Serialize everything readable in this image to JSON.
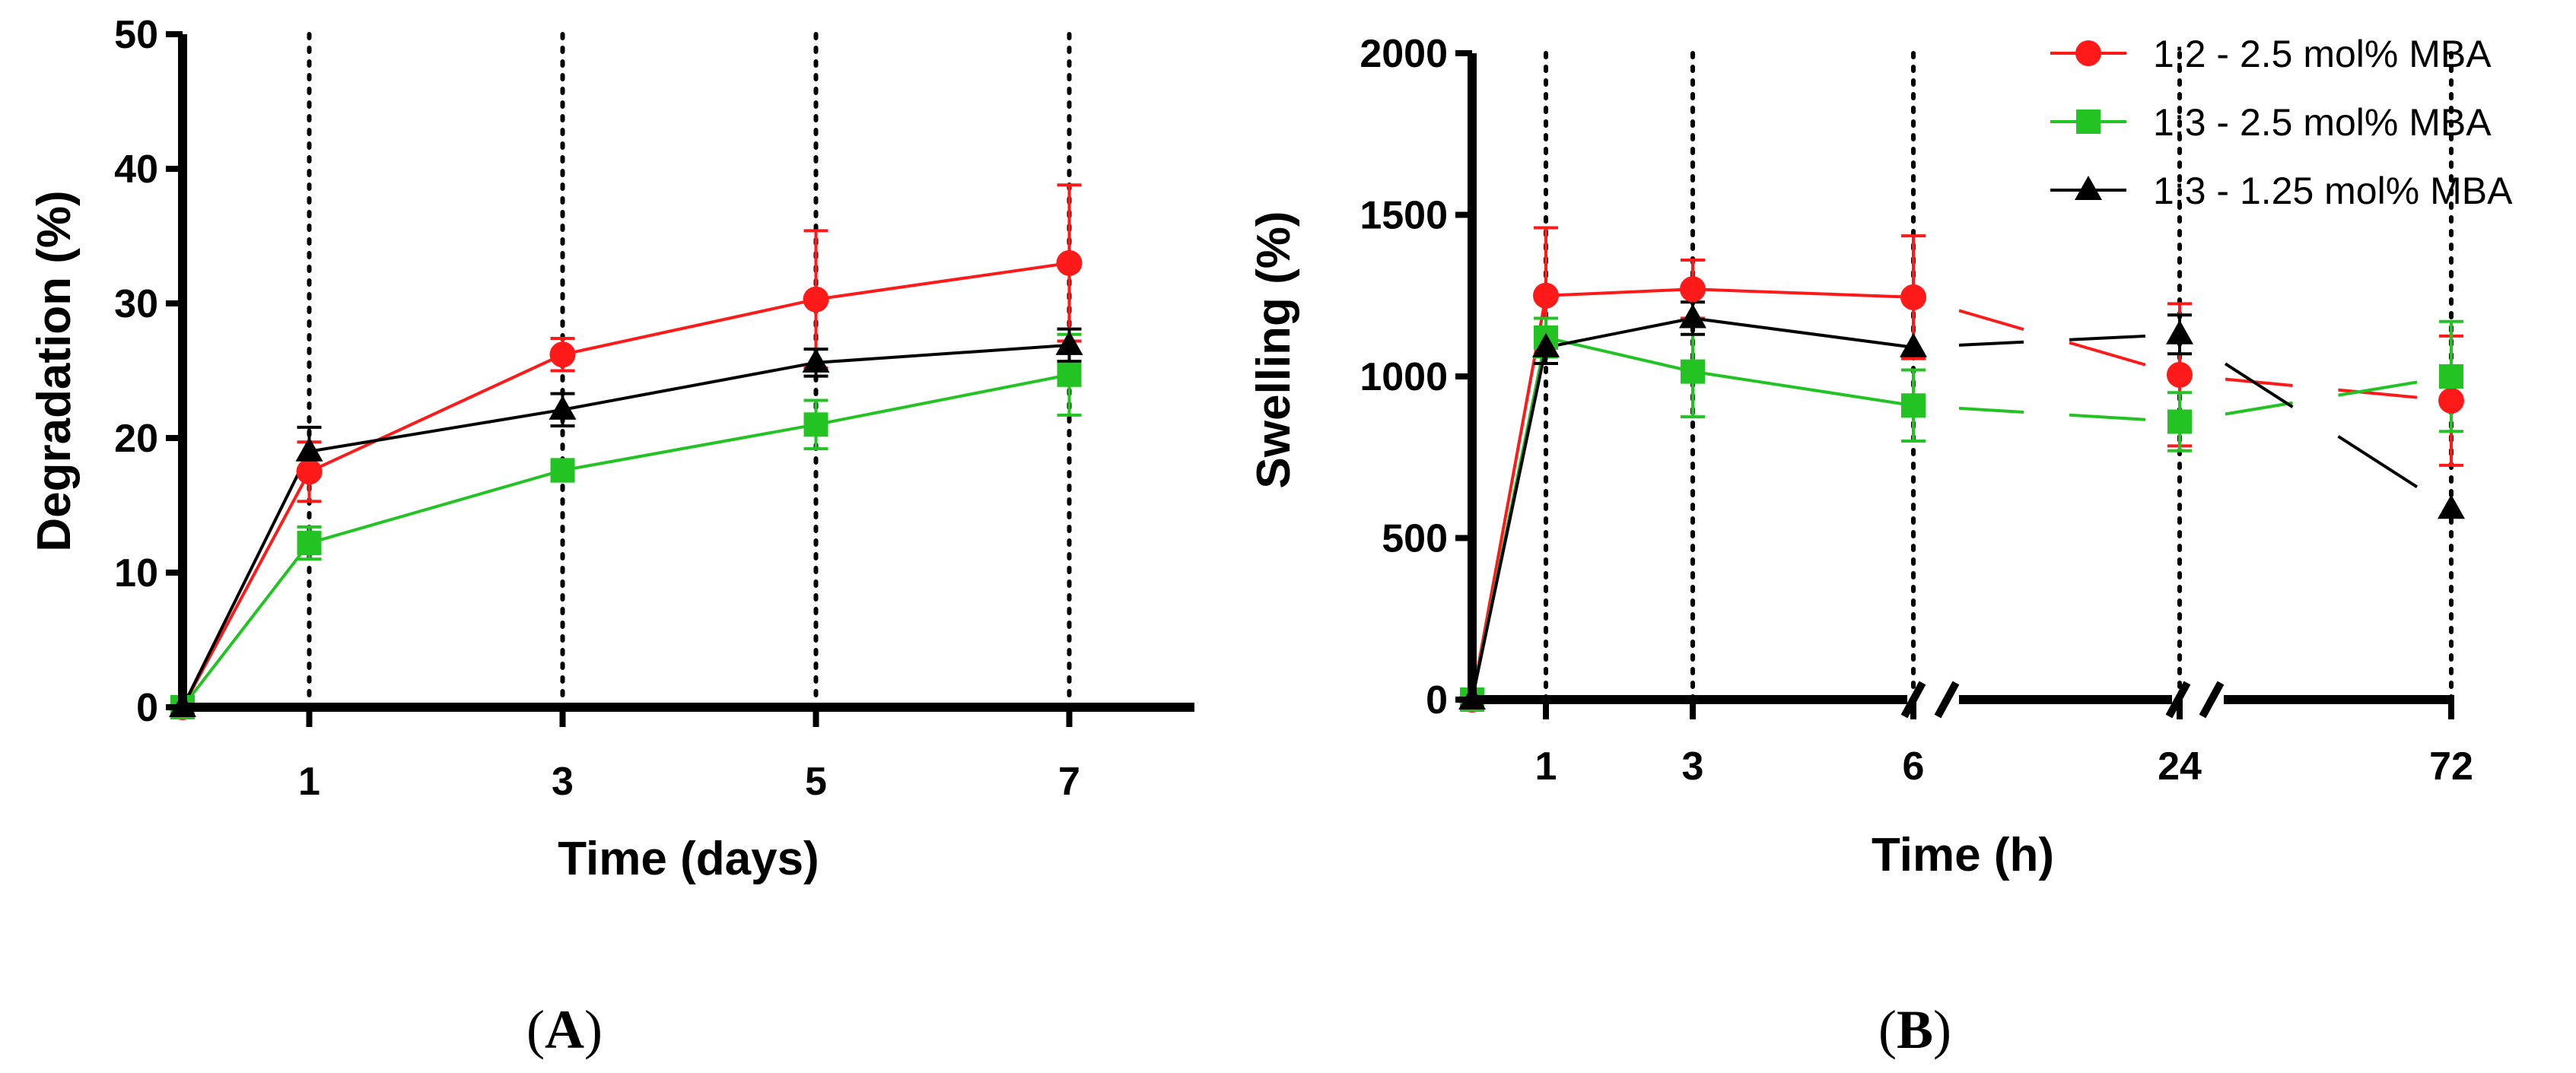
{
  "colors": {
    "red": "#ff1a1a",
    "green": "#22c322",
    "black": "#000000"
  },
  "legend": {
    "entries": [
      {
        "label": "1:2 - 2.5 mol% MBA",
        "color": "#ff1a1a",
        "marker": "circle"
      },
      {
        "label": "1:3 - 2.5 mol% MBA",
        "color": "#22c322",
        "marker": "square"
      },
      {
        "label": "1:3 - 1.25 mol% MBA",
        "color": "#000000",
        "marker": "triangle"
      }
    ]
  },
  "chart_data": [
    {
      "type": "line",
      "panel_label": "A",
      "xlabel": "Time (days)",
      "ylabel": "Degradation (%)",
      "ylim": [
        0,
        50
      ],
      "xlim": [
        0,
        7.8
      ],
      "yticks": [
        0,
        10,
        20,
        30,
        40,
        50
      ],
      "xticks": [
        1,
        3,
        5,
        7
      ],
      "vlines": [
        1,
        3,
        5,
        7
      ],
      "series": [
        {
          "name": "1:2 - 2.5 mol% MBA",
          "color": "#ff1a1a",
          "marker": "circle",
          "x": [
            0,
            1,
            3,
            5,
            7
          ],
          "y": [
            0,
            17.5,
            26.2,
            30.3,
            33
          ],
          "err": [
            0,
            2.2,
            1.2,
            5.1,
            5.8
          ]
        },
        {
          "name": "1:3 - 2.5 mol% MBA",
          "color": "#22c322",
          "marker": "square",
          "x": [
            0,
            1,
            3,
            5,
            7
          ],
          "y": [
            0,
            12.2,
            17.6,
            21,
            24.7
          ],
          "err": [
            0,
            1.2,
            0.8,
            1.8,
            3.0
          ]
        },
        {
          "name": "1:3 - 1.25 mol% MBA",
          "color": "#000000",
          "marker": "triangle",
          "x": [
            0,
            1,
            3,
            5,
            7
          ],
          "y": [
            0,
            19,
            22.1,
            25.6,
            26.9
          ],
          "err": [
            0,
            1.8,
            1.2,
            1.0,
            1.2
          ]
        }
      ]
    },
    {
      "type": "line",
      "panel_label": "B",
      "xlabel": "Time (h)",
      "ylabel": "Swelling (%)",
      "ylim": [
        0,
        2000
      ],
      "yticks": [
        0,
        500,
        1000,
        1500,
        2000
      ],
      "xticks": [
        "1",
        "3",
        "6",
        "24",
        "72"
      ],
      "x_scale": "broken",
      "axis_breaks": [
        6,
        24
      ],
      "vlines": [
        "1",
        "3",
        "6",
        "24",
        "72"
      ],
      "series": [
        {
          "name": "1:2 - 2.5 mol% MBA",
          "color": "#ff1a1a",
          "marker": "circle",
          "x": [
            "0",
            "1",
            "3",
            "6",
            "24",
            "72"
          ],
          "y": [
            0,
            1250,
            1270,
            1245,
            1005,
            925
          ],
          "err": [
            0,
            210,
            90,
            190,
            220,
            200
          ]
        },
        {
          "name": "1:3 - 2.5 mol% MBA",
          "color": "#22c322",
          "marker": "square",
          "x": [
            "0",
            "1",
            "3",
            "6",
            "24",
            "72"
          ],
          "y": [
            0,
            1120,
            1015,
            910,
            860,
            1000
          ],
          "err": [
            0,
            60,
            140,
            110,
            90,
            170
          ]
        },
        {
          "name": "1:3 - 1.25 mol% MBA",
          "color": "#000000",
          "marker": "triangle",
          "x": [
            "0",
            "1",
            "3",
            "6",
            "24",
            "72"
          ],
          "y": [
            0,
            1090,
            1180,
            1090,
            1130,
            590
          ],
          "err": [
            0,
            50,
            50,
            0,
            60,
            0
          ]
        }
      ]
    }
  ]
}
